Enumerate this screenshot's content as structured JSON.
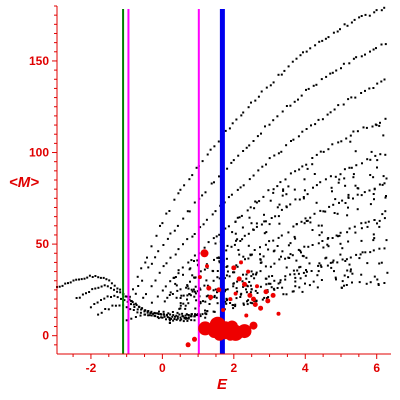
{
  "chart_data": {
    "type": "scatter",
    "title": "",
    "xlabel": "E",
    "ylabel": "<M>",
    "xlim": [
      -2.95,
      6.4
    ],
    "ylim": [
      -10,
      180
    ],
    "xticks": [
      -2,
      0,
      2,
      4,
      6
    ],
    "yticks": [
      0,
      50,
      100,
      150
    ],
    "xtick_labels": [
      "-2",
      "0",
      "2",
      "4",
      "6"
    ],
    "ytick_labels": [
      "0",
      "50",
      "100",
      "150"
    ],
    "grid": false,
    "legend": "none",
    "colors": {
      "axis": "#e00000",
      "dots": "#000000",
      "highlight": "#ee0000",
      "line_green": "#008000",
      "line_magenta": "#ff00ff",
      "line_blue": "#0000ee"
    },
    "vertical_lines": [
      {
        "x": -1.1,
        "color": "green",
        "width": 2
      },
      {
        "x": -0.95,
        "color": "magenta",
        "width": 2
      },
      {
        "x": 1.02,
        "color": "magenta",
        "width": 2
      },
      {
        "x": 1.68,
        "color": "blue",
        "width": 5
      }
    ],
    "band_curves": [
      {
        "points": [
          [
            -0.95,
            20
          ],
          [
            -0.5,
            40
          ],
          [
            0,
            62
          ],
          [
            0.5,
            79
          ],
          [
            1,
            93
          ],
          [
            1.5,
            105
          ],
          [
            2,
            116
          ],
          [
            2.5,
            127
          ],
          [
            3,
            137
          ],
          [
            3.5,
            146
          ],
          [
            4,
            155
          ],
          [
            4.5,
            162
          ],
          [
            5,
            168
          ],
          [
            5.5,
            173
          ],
          [
            6,
            177
          ],
          [
            6.3,
            179
          ]
        ],
        "n": 70
      },
      {
        "points": [
          [
            -0.9,
            18
          ],
          [
            -0.5,
            33
          ],
          [
            0,
            49
          ],
          [
            0.5,
            62
          ],
          [
            1,
            74
          ],
          [
            1.5,
            85
          ],
          [
            2,
            96
          ],
          [
            2.5,
            106
          ],
          [
            3,
            116
          ],
          [
            3.5,
            125
          ],
          [
            4,
            133
          ],
          [
            4.5,
            140
          ],
          [
            5,
            147
          ],
          [
            5.5,
            152
          ],
          [
            6,
            157
          ],
          [
            6.3,
            160
          ]
        ],
        "n": 65
      },
      {
        "points": [
          [
            -0.6,
            18
          ],
          [
            0,
            37
          ],
          [
            0.5,
            48
          ],
          [
            1,
            58
          ],
          [
            1.5,
            68
          ],
          [
            2,
            78
          ],
          [
            2.5,
            87
          ],
          [
            3,
            96
          ],
          [
            3.5,
            104
          ],
          [
            4,
            112
          ],
          [
            4.5,
            119
          ],
          [
            5,
            126
          ],
          [
            5.5,
            132
          ],
          [
            6,
            137
          ],
          [
            6.3,
            140
          ]
        ],
        "n": 60
      },
      {
        "points": [
          [
            -0.3,
            18
          ],
          [
            0.5,
            36
          ],
          [
            1,
            45
          ],
          [
            1.5,
            54
          ],
          [
            2,
            62
          ],
          [
            2.5,
            71
          ],
          [
            3,
            79
          ],
          [
            3.5,
            87
          ],
          [
            4,
            94
          ],
          [
            4.5,
            101
          ],
          [
            5,
            107
          ],
          [
            5.5,
            112
          ],
          [
            6,
            116
          ],
          [
            6.3,
            119
          ]
        ],
        "n": 55
      },
      {
        "points": [
          [
            0,
            18
          ],
          [
            1,
            33
          ],
          [
            1.5,
            42
          ],
          [
            2,
            50
          ],
          [
            2.5,
            57
          ],
          [
            3,
            64
          ],
          [
            3.5,
            71
          ],
          [
            4,
            77
          ],
          [
            4.5,
            84
          ],
          [
            5,
            89
          ],
          [
            5.5,
            94
          ],
          [
            6,
            98
          ],
          [
            6.3,
            100
          ]
        ],
        "n": 50
      },
      {
        "points": [
          [
            0.5,
            18
          ],
          [
            1.5,
            31
          ],
          [
            2,
            38
          ],
          [
            2.5,
            45
          ],
          [
            3,
            51
          ],
          [
            3.5,
            57
          ],
          [
            4,
            63
          ],
          [
            4.5,
            68
          ],
          [
            5,
            73
          ],
          [
            5.5,
            77
          ],
          [
            6,
            81
          ],
          [
            6.3,
            83
          ]
        ],
        "n": 45
      },
      {
        "points": [
          [
            1,
            18
          ],
          [
            2,
            28
          ],
          [
            2.5,
            33
          ],
          [
            3,
            38
          ],
          [
            3.5,
            43
          ],
          [
            4,
            48
          ],
          [
            4.5,
            52
          ],
          [
            5,
            56
          ],
          [
            5.5,
            60
          ],
          [
            6,
            63
          ],
          [
            6.3,
            65
          ]
        ],
        "n": 40
      },
      {
        "points": [
          [
            1.5,
            17
          ],
          [
            2.5,
            24
          ],
          [
            3,
            28
          ],
          [
            3.5,
            32
          ],
          [
            4,
            35
          ],
          [
            4.5,
            38
          ],
          [
            5,
            41
          ],
          [
            5.5,
            44
          ],
          [
            6,
            46
          ],
          [
            6.3,
            48
          ]
        ],
        "n": 36
      }
    ],
    "left_lobes": [
      {
        "points": [
          [
            -2.95,
            26
          ],
          [
            -2.5,
            30
          ],
          [
            -2,
            32.5
          ],
          [
            -1.6,
            31.5
          ],
          [
            -1.3,
            27
          ],
          [
            -1.1,
            23
          ],
          [
            -0.8,
            17
          ],
          [
            -0.3,
            12
          ],
          [
            0.3,
            10
          ],
          [
            0.8,
            10
          ],
          [
            1.2,
            12
          ]
        ],
        "n": 55
      },
      {
        "points": [
          [
            -2.4,
            20
          ],
          [
            -2,
            25
          ],
          [
            -1.6,
            27
          ],
          [
            -1.3,
            25
          ],
          [
            -1,
            21
          ],
          [
            -0.6,
            15
          ],
          [
            -0.1,
            12
          ],
          [
            0.5,
            11
          ],
          [
            1,
            12
          ]
        ],
        "n": 40
      },
      {
        "points": [
          [
            -2,
            16
          ],
          [
            -1.7,
            20
          ],
          [
            -1.4,
            21.5
          ],
          [
            -1.1,
            20
          ],
          [
            -0.7,
            15
          ],
          [
            -0.2,
            11
          ],
          [
            0.4,
            9
          ],
          [
            0.9,
            9
          ]
        ],
        "n": 32
      },
      {
        "points": [
          [
            -1.8,
            12
          ],
          [
            -1.4,
            16
          ],
          [
            -1.1,
            16.5
          ],
          [
            -0.8,
            14
          ],
          [
            -0.4,
            11
          ],
          [
            0.2,
            9
          ],
          [
            0.7,
            8
          ]
        ],
        "n": 26
      },
      {
        "points": [
          [
            -1.0,
            9
          ],
          [
            -0.5,
            11
          ],
          [
            0,
            13
          ],
          [
            0.6,
            12
          ],
          [
            1.2,
            10
          ]
        ],
        "n": 18
      }
    ],
    "scatter_cloud": {
      "xmin": 0.2,
      "xmax": 6.3,
      "n": 380
    },
    "highlight_points": [
      {
        "x": 1.2,
        "y": 4,
        "size": 7
      },
      {
        "x": 1.55,
        "y": 6,
        "size": 8
      },
      {
        "x": 1.75,
        "y": 3,
        "size": 9
      },
      {
        "x": 2.05,
        "y": 1.5,
        "size": 8
      },
      {
        "x": 2.3,
        "y": 2.5,
        "size": 7
      },
      {
        "x": 1.95,
        "y": 5,
        "size": 6
      },
      {
        "x": 1.45,
        "y": 2,
        "size": 6
      },
      {
        "x": 1.6,
        "y": 0.5,
        "size": 6
      },
      {
        "x": 1.9,
        "y": 0,
        "size": 5
      },
      {
        "x": 2.55,
        "y": 5.5,
        "size": 4
      },
      {
        "x": 1.18,
        "y": 45,
        "size": 4
      },
      {
        "x": 0.72,
        "y": -5,
        "size": 2.5
      },
      {
        "x": 0.9,
        "y": -2,
        "size": 2.5
      },
      {
        "x": 1.3,
        "y": 26,
        "size": 2.5
      },
      {
        "x": 1.35,
        "y": 21,
        "size": 2.5
      },
      {
        "x": 1.58,
        "y": 25,
        "size": 2.5
      },
      {
        "x": 2.0,
        "y": 37,
        "size": 2.5
      },
      {
        "x": 2.15,
        "y": 31,
        "size": 2.5
      },
      {
        "x": 2.3,
        "y": 28,
        "size": 2.5
      },
      {
        "x": 2.45,
        "y": 22,
        "size": 2.5
      },
      {
        "x": 2.55,
        "y": 20,
        "size": 2.5
      },
      {
        "x": 2.6,
        "y": 17,
        "size": 2.5
      },
      {
        "x": 2.75,
        "y": 15,
        "size": 2.5
      },
      {
        "x": 2.9,
        "y": 24,
        "size": 2.5
      },
      {
        "x": 2.95,
        "y": 19,
        "size": 2.5
      },
      {
        "x": 3.1,
        "y": 22,
        "size": 2.5
      },
      {
        "x": 2.2,
        "y": 40,
        "size": 2
      },
      {
        "x": 2.4,
        "y": 35,
        "size": 2
      },
      {
        "x": 2.05,
        "y": 23,
        "size": 2
      },
      {
        "x": 1.9,
        "y": 20,
        "size": 2
      },
      {
        "x": 2.65,
        "y": 27,
        "size": 2
      },
      {
        "x": 3.25,
        "y": 12,
        "size": 2
      },
      {
        "x": 1.05,
        "y": 32,
        "size": 2
      },
      {
        "x": 1.25,
        "y": 38,
        "size": 2
      },
      {
        "x": 1.7,
        "y": 14,
        "size": 2
      },
      {
        "x": 2.35,
        "y": 11,
        "size": 2
      }
    ]
  }
}
